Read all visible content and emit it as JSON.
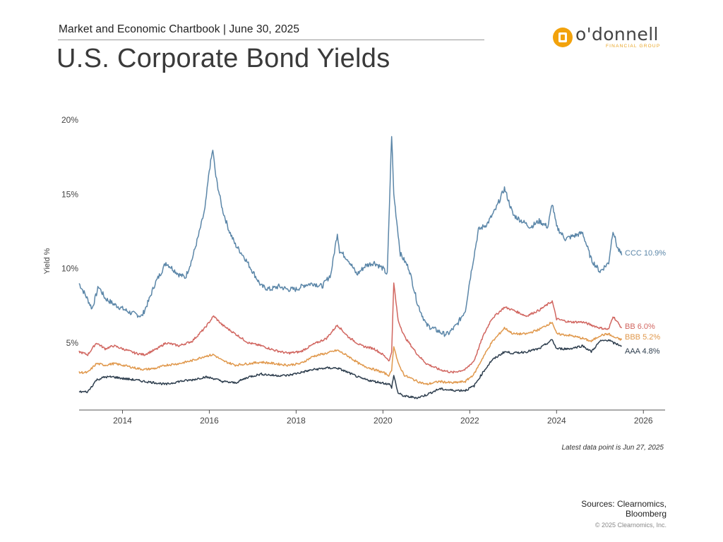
{
  "header": {
    "subtitle": "Market and Economic Chartbook | June 30, 2025",
    "title": "U.S. Corporate Bond Yields"
  },
  "logo": {
    "name": "o'donnell",
    "sub": "FINANCIAL GROUP",
    "accent_color": "#f2a20c"
  },
  "chart_data": {
    "type": "line",
    "ylabel": "Yield %",
    "xlabel": "",
    "xlim": [
      2013.0,
      2026.5
    ],
    "ylim": [
      0,
      20
    ],
    "x_ticks": [
      2014,
      2016,
      2018,
      2020,
      2022,
      2024,
      2026
    ],
    "x_tick_labels": [
      "2014",
      "2016",
      "2018",
      "2020",
      "2022",
      "2024",
      "2026"
    ],
    "y_ticks": [
      5,
      10,
      15,
      20
    ],
    "y_tick_labels": [
      "5%",
      "10%",
      "15%",
      "20%"
    ],
    "grid": false,
    "series": [
      {
        "name": "CCC",
        "end_label": "CCC 10.9%",
        "color": "#5b86a8",
        "x": [
          2013.0,
          2013.15,
          2013.3,
          2013.45,
          2013.6,
          2013.8,
          2014.0,
          2014.2,
          2014.45,
          2014.6,
          2014.75,
          2014.9,
          2015.0,
          2015.15,
          2015.3,
          2015.45,
          2015.6,
          2015.75,
          2015.9,
          2016.0,
          2016.08,
          2016.15,
          2016.3,
          2016.45,
          2016.6,
          2016.8,
          2017.0,
          2017.2,
          2017.4,
          2017.6,
          2017.8,
          2018.0,
          2018.2,
          2018.4,
          2018.6,
          2018.8,
          2018.95,
          2019.0,
          2019.2,
          2019.4,
          2019.6,
          2019.8,
          2020.0,
          2020.1,
          2020.2,
          2020.25,
          2020.4,
          2020.6,
          2020.8,
          2021.0,
          2021.2,
          2021.4,
          2021.5,
          2021.7,
          2021.9,
          2022.0,
          2022.2,
          2022.4,
          2022.6,
          2022.8,
          2023.0,
          2023.2,
          2023.4,
          2023.6,
          2023.8,
          2023.9,
          2024.0,
          2024.2,
          2024.4,
          2024.6,
          2024.8,
          2025.0,
          2025.2,
          2025.3,
          2025.4,
          2025.5
        ],
        "values": [
          9.0,
          8.2,
          7.3,
          8.8,
          8.0,
          7.6,
          7.3,
          7.0,
          6.8,
          7.8,
          9.0,
          9.8,
          10.4,
          10.0,
          9.6,
          9.4,
          10.6,
          12.2,
          14.0,
          16.6,
          18.0,
          16.2,
          14.0,
          12.6,
          11.6,
          10.8,
          9.8,
          8.8,
          8.6,
          8.8,
          8.6,
          8.6,
          8.9,
          9.0,
          8.8,
          9.6,
          12.4,
          11.2,
          10.6,
          9.6,
          10.2,
          10.4,
          10.0,
          9.6,
          19.0,
          15.0,
          11.0,
          10.0,
          7.6,
          6.2,
          5.9,
          5.6,
          5.6,
          6.2,
          7.2,
          9.2,
          12.6,
          13.0,
          14.0,
          15.4,
          13.6,
          13.2,
          12.8,
          13.2,
          12.8,
          14.4,
          12.8,
          12.0,
          12.2,
          12.4,
          10.6,
          9.8,
          10.4,
          12.6,
          11.4,
          10.9
        ]
      },
      {
        "name": "BB",
        "end_label": "BB 6.0%",
        "color": "#d16660",
        "x": [
          2013.0,
          2013.2,
          2013.4,
          2013.6,
          2013.8,
          2014.0,
          2014.3,
          2014.5,
          2014.8,
          2015.0,
          2015.3,
          2015.6,
          2015.9,
          2016.1,
          2016.3,
          2016.6,
          2016.9,
          2017.2,
          2017.5,
          2017.8,
          2018.1,
          2018.4,
          2018.7,
          2018.95,
          2019.2,
          2019.5,
          2019.8,
          2020.0,
          2020.15,
          2020.2,
          2020.25,
          2020.35,
          2020.5,
          2020.8,
          2021.0,
          2021.3,
          2021.6,
          2021.9,
          2022.1,
          2022.3,
          2022.5,
          2022.8,
          2023.0,
          2023.3,
          2023.6,
          2023.9,
          2024.0,
          2024.3,
          2024.6,
          2024.8,
          2025.0,
          2025.2,
          2025.3,
          2025.5
        ],
        "values": [
          4.4,
          4.2,
          5.0,
          4.6,
          4.8,
          4.6,
          4.3,
          4.2,
          4.6,
          5.0,
          4.8,
          5.1,
          6.0,
          6.8,
          6.2,
          5.6,
          5.0,
          4.8,
          4.5,
          4.3,
          4.4,
          4.9,
          5.3,
          6.2,
          5.4,
          4.8,
          4.6,
          4.2,
          3.8,
          4.4,
          9.0,
          6.5,
          5.4,
          4.2,
          3.6,
          3.2,
          3.0,
          3.2,
          3.8,
          5.4,
          6.6,
          7.4,
          7.2,
          6.8,
          7.2,
          7.8,
          6.6,
          6.4,
          6.4,
          6.2,
          6.0,
          5.9,
          6.8,
          6.0
        ]
      },
      {
        "name": "BBB",
        "end_label": "BBB 5.2%",
        "color": "#e0984c",
        "x": [
          2013.0,
          2013.2,
          2013.4,
          2013.6,
          2013.8,
          2014.0,
          2014.3,
          2014.5,
          2014.8,
          2015.0,
          2015.3,
          2015.6,
          2015.9,
          2016.1,
          2016.3,
          2016.6,
          2016.9,
          2017.2,
          2017.5,
          2017.8,
          2018.1,
          2018.4,
          2018.7,
          2018.95,
          2019.2,
          2019.5,
          2019.8,
          2020.0,
          2020.15,
          2020.2,
          2020.25,
          2020.35,
          2020.5,
          2020.8,
          2021.0,
          2021.3,
          2021.6,
          2021.9,
          2022.1,
          2022.3,
          2022.5,
          2022.8,
          2023.0,
          2023.3,
          2023.6,
          2023.9,
          2024.0,
          2024.3,
          2024.6,
          2024.8,
          2025.0,
          2025.2,
          2025.3,
          2025.5
        ],
        "values": [
          3.0,
          3.0,
          3.6,
          3.5,
          3.6,
          3.5,
          3.3,
          3.2,
          3.3,
          3.5,
          3.6,
          3.8,
          4.1,
          4.2,
          3.8,
          3.5,
          3.6,
          3.7,
          3.6,
          3.5,
          3.6,
          4.1,
          4.3,
          4.5,
          4.1,
          3.5,
          3.2,
          3.0,
          2.8,
          3.2,
          4.8,
          3.6,
          2.8,
          2.4,
          2.2,
          2.4,
          2.3,
          2.4,
          2.9,
          4.0,
          5.0,
          6.0,
          5.6,
          5.6,
          5.9,
          6.4,
          5.6,
          5.5,
          5.3,
          5.1,
          5.5,
          5.6,
          5.4,
          5.2
        ]
      },
      {
        "name": "AAA",
        "end_label": "AAA 4.8%",
        "color": "#2e3e4e",
        "x": [
          2013.0,
          2013.2,
          2013.4,
          2013.6,
          2013.8,
          2014.0,
          2014.3,
          2014.5,
          2014.8,
          2015.0,
          2015.3,
          2015.6,
          2015.9,
          2016.1,
          2016.3,
          2016.6,
          2016.9,
          2017.2,
          2017.5,
          2017.8,
          2018.1,
          2018.4,
          2018.7,
          2018.95,
          2019.2,
          2019.5,
          2019.8,
          2020.0,
          2020.15,
          2020.2,
          2020.25,
          2020.35,
          2020.5,
          2020.8,
          2021.0,
          2021.3,
          2021.6,
          2021.9,
          2022.1,
          2022.3,
          2022.5,
          2022.8,
          2023.0,
          2023.3,
          2023.6,
          2023.9,
          2024.0,
          2024.3,
          2024.6,
          2024.8,
          2025.0,
          2025.2,
          2025.3,
          2025.5
        ],
        "values": [
          1.7,
          1.7,
          2.5,
          2.7,
          2.7,
          2.6,
          2.5,
          2.4,
          2.3,
          2.2,
          2.4,
          2.5,
          2.7,
          2.6,
          2.4,
          2.3,
          2.7,
          2.9,
          2.8,
          2.8,
          3.0,
          3.2,
          3.3,
          3.3,
          3.0,
          2.6,
          2.4,
          2.3,
          2.2,
          2.0,
          2.8,
          1.6,
          1.4,
          1.3,
          1.5,
          1.9,
          1.8,
          1.8,
          2.1,
          3.0,
          3.8,
          4.4,
          4.3,
          4.4,
          4.6,
          5.2,
          4.6,
          4.6,
          4.8,
          4.4,
          5.1,
          5.2,
          5.0,
          4.8
        ]
      }
    ],
    "note": "Latest data point is Jun 27, 2025"
  },
  "footer": {
    "sources_line1": "Sources: Clearnomics,",
    "sources_line2": "Bloomberg",
    "copyright": "© 2025 Clearnomics, Inc."
  }
}
